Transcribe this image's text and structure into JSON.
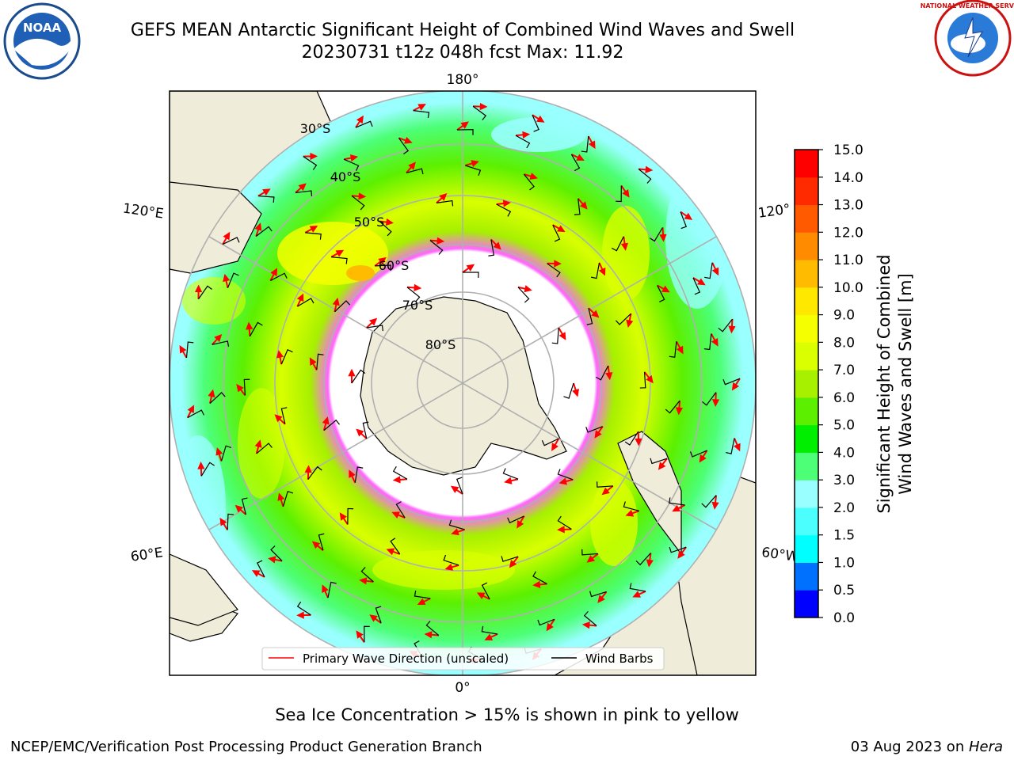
{
  "header": {
    "title": "GEFS MEAN Antarctic Significant Height of Combined Wind Waves and Swell",
    "subtitle": "20230731 t12z 048h fcst   Max: 11.92"
  },
  "logos": {
    "left": "noaa-logo",
    "right": "national-weather-service-logo",
    "left_text": "NOAA",
    "right_text": "NATIONAL WEATHER SERVICE"
  },
  "map": {
    "projection": "south-polar-stereographic",
    "lon_labels": {
      "top": "180°",
      "bottom": "0°",
      "upper_left": "120°E",
      "upper_right": "120°",
      "lower_left": "60°E",
      "lower_right": "60°W"
    },
    "lat_labels": [
      "30°S",
      "40°S",
      "50°S",
      "60°S",
      "70°S",
      "80°S"
    ],
    "legend": [
      {
        "label": "Primary Wave Direction (unscaled)",
        "color": "#ff0000"
      },
      {
        "label": "Wind Barbs",
        "color": "#000000"
      }
    ]
  },
  "colorbar": {
    "label_line1": "Significant Height of Combined",
    "label_line2": "Wind Waves and Swell [m]",
    "ticks": [
      "0.0",
      "0.5",
      "1.0",
      "1.5",
      "2.0",
      "3.0",
      "4.0",
      "5.0",
      "6.0",
      "7.0",
      "8.0",
      "9.0",
      "10.0",
      "11.0",
      "12.0",
      "13.0",
      "14.0",
      "15.0"
    ],
    "colors": [
      "#0000ff",
      "#0070ff",
      "#00ffff",
      "#4cffff",
      "#99ffff",
      "#4cff76",
      "#00ee00",
      "#5cf000",
      "#a6f000",
      "#d9ff00",
      "#f5ff00",
      "#ffe800",
      "#ffbb00",
      "#ff8c00",
      "#ff5a00",
      "#ff2a00",
      "#ff0000"
    ]
  },
  "caption": "Sea Ice Concentration > 15% is shown in pink to yellow",
  "footer": {
    "left": "NCEP/EMC/Verification Post Processing Product Generation Branch",
    "right_date": "03 Aug 2023 on ",
    "right_host": "Hera"
  }
}
